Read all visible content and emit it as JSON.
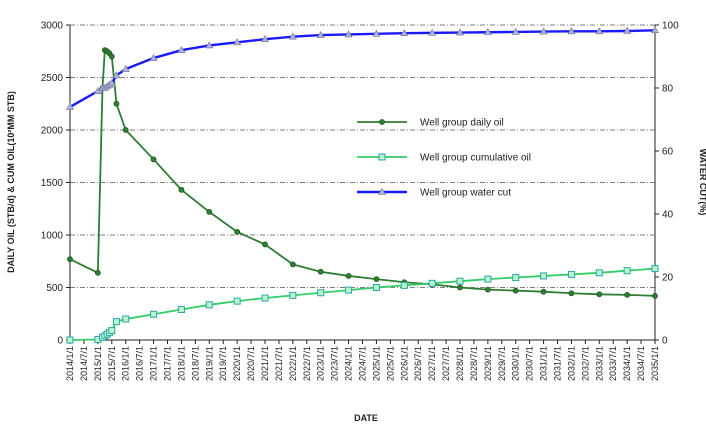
{
  "chart_data": {
    "type": "line",
    "xlabel": "DATE",
    "ylabel_left": "DAILY OIL (STB/d) & CUM OIL(10²MM STB)",
    "ylabel_right": "WATER CUT(%)",
    "y_left_range": [
      0,
      3000
    ],
    "y_left_ticks": [
      "0",
      "500",
      "1000",
      "1500",
      "2000",
      "2500",
      "3000"
    ],
    "y_right_range": [
      0,
      100
    ],
    "y_right_ticks": [
      "0",
      "20",
      "40",
      "60",
      "80",
      "100"
    ],
    "x_range": [
      "2014/1/1",
      "2035/1/1"
    ],
    "x_ticks": [
      "2014/1/1",
      "2014/7/1",
      "2015/1/1",
      "2015/7/1",
      "2016/1/1",
      "2016/7/1",
      "2017/1/1",
      "2017/7/1",
      "2018/1/1",
      "2018/7/1",
      "2019/1/1",
      "2019/7/1",
      "2020/1/1",
      "2020/7/1",
      "2021/1/1",
      "2021/7/1",
      "2022/1/1",
      "2022/7/1",
      "2023/1/1",
      "2023/7/1",
      "2024/1/1",
      "2024/7/1",
      "2025/1/1",
      "2025/7/1",
      "2026/1/1",
      "2026/7/1",
      "2027/1/1",
      "2027/7/1",
      "2028/1/1",
      "2028/7/1",
      "2029/1/1",
      "2029/7/1",
      "2030/1/1",
      "2030/7/1",
      "2031/1/1",
      "2031/7/1",
      "2032/1/1",
      "2032/7/1",
      "2033/1/1",
      "2033/7/1",
      "2034/1/1",
      "2034/7/1",
      "2035/1/1"
    ],
    "grid": true,
    "legend_position": "center-right",
    "series": [
      {
        "name": "Well group daily oil",
        "axis": "left",
        "color": "#2e7d32",
        "marker": "circle",
        "points": [
          [
            "2014/1/1",
            770
          ],
          [
            "2015/1/1",
            640
          ],
          [
            "2015/3/1",
            2400
          ],
          [
            "2015/4/1",
            2760
          ],
          [
            "2015/5/1",
            2750
          ],
          [
            "2015/6/1",
            2730
          ],
          [
            "2015/7/1",
            2700
          ],
          [
            "2015/9/1",
            2250
          ],
          [
            "2016/1/1",
            2000
          ],
          [
            "2017/1/1",
            1720
          ],
          [
            "2018/1/1",
            1430
          ],
          [
            "2019/1/1",
            1220
          ],
          [
            "2020/1/1",
            1030
          ],
          [
            "2021/1/1",
            910
          ],
          [
            "2022/1/1",
            720
          ],
          [
            "2023/1/1",
            650
          ],
          [
            "2024/1/1",
            610
          ],
          [
            "2025/1/1",
            580
          ],
          [
            "2026/1/1",
            550
          ],
          [
            "2027/1/1",
            530
          ],
          [
            "2028/1/1",
            500
          ],
          [
            "2029/1/1",
            480
          ],
          [
            "2030/1/1",
            470
          ],
          [
            "2031/1/1",
            460
          ],
          [
            "2032/1/1",
            445
          ],
          [
            "2033/1/1",
            435
          ],
          [
            "2034/1/1",
            430
          ],
          [
            "2035/1/1",
            420
          ]
        ]
      },
      {
        "name": "Well group cumulative oil",
        "axis": "left",
        "color": "#33cc66",
        "marker": "square",
        "points": [
          [
            "2014/1/1",
            0
          ],
          [
            "2015/1/1",
            5
          ],
          [
            "2015/3/1",
            25
          ],
          [
            "2015/4/1",
            40
          ],
          [
            "2015/5/1",
            55
          ],
          [
            "2015/6/1",
            70
          ],
          [
            "2015/7/1",
            90
          ],
          [
            "2015/9/1",
            175
          ],
          [
            "2016/1/1",
            200
          ],
          [
            "2017/1/1",
            245
          ],
          [
            "2018/1/1",
            290
          ],
          [
            "2019/1/1",
            335
          ],
          [
            "2020/1/1",
            370
          ],
          [
            "2021/1/1",
            400
          ],
          [
            "2022/1/1",
            425
          ],
          [
            "2023/1/1",
            450
          ],
          [
            "2024/1/1",
            475
          ],
          [
            "2025/1/1",
            500
          ],
          [
            "2026/1/1",
            520
          ],
          [
            "2027/1/1",
            540
          ],
          [
            "2028/1/1",
            560
          ],
          [
            "2029/1/1",
            580
          ],
          [
            "2030/1/1",
            595
          ],
          [
            "2031/1/1",
            610
          ],
          [
            "2032/1/1",
            625
          ],
          [
            "2033/1/1",
            640
          ],
          [
            "2034/1/1",
            660
          ],
          [
            "2035/1/1",
            680
          ]
        ]
      },
      {
        "name": "Well group water cut",
        "axis": "right",
        "color": "#1a1aff",
        "marker": "triangle",
        "points": [
          [
            "2014/1/1",
            74
          ],
          [
            "2015/1/1",
            79
          ],
          [
            "2015/3/1",
            80
          ],
          [
            "2015/4/1",
            80
          ],
          [
            "2015/5/1",
            80.5
          ],
          [
            "2015/6/1",
            81
          ],
          [
            "2015/7/1",
            81.5
          ],
          [
            "2015/9/1",
            84
          ],
          [
            "2016/1/1",
            86
          ],
          [
            "2017/1/1",
            89.5
          ],
          [
            "2018/1/1",
            92
          ],
          [
            "2019/1/1",
            93.5
          ],
          [
            "2020/1/1",
            94.5
          ],
          [
            "2021/1/1",
            95.5
          ],
          [
            "2022/1/1",
            96.3
          ],
          [
            "2023/1/1",
            96.8
          ],
          [
            "2024/1/1",
            97
          ],
          [
            "2025/1/1",
            97.2
          ],
          [
            "2026/1/1",
            97.4
          ],
          [
            "2027/1/1",
            97.5
          ],
          [
            "2028/1/1",
            97.6
          ],
          [
            "2029/1/1",
            97.7
          ],
          [
            "2030/1/1",
            97.8
          ],
          [
            "2031/1/1",
            97.9
          ],
          [
            "2032/1/1",
            98
          ],
          [
            "2033/1/1",
            98
          ],
          [
            "2034/1/1",
            98.1
          ],
          [
            "2035/1/1",
            98.3
          ]
        ]
      }
    ]
  }
}
